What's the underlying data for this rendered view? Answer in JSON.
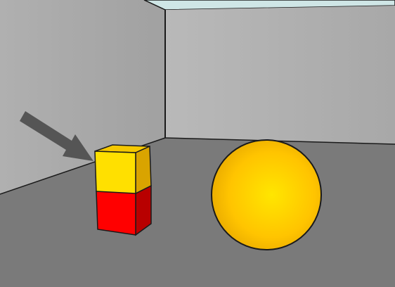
{
  "scene": {
    "colors": {
      "ceiling": "#cfe6e6",
      "left_wall": "#a9a9a9",
      "back_wall": "#b4b4b4",
      "floor": "#7a7a7a",
      "edge": "#1a1a1a",
      "arrow": "#555555"
    },
    "objects": {
      "top_cube": {
        "shape": "cube",
        "color_front": "#ffe000",
        "color_top": "#f5c800",
        "color_side": "#d9a400"
      },
      "bottom_cube": {
        "shape": "cube",
        "color_front": "#ff0000",
        "color_top": "#e00000",
        "color_side": "#b80000"
      },
      "sphere": {
        "shape": "sphere",
        "color_highlight": "#ffe600",
        "color_mid": "#ffc400",
        "color_shadow": "#e0a000"
      },
      "pointer_arrow": {
        "shape": "arrow",
        "target": "top_cube"
      }
    }
  }
}
